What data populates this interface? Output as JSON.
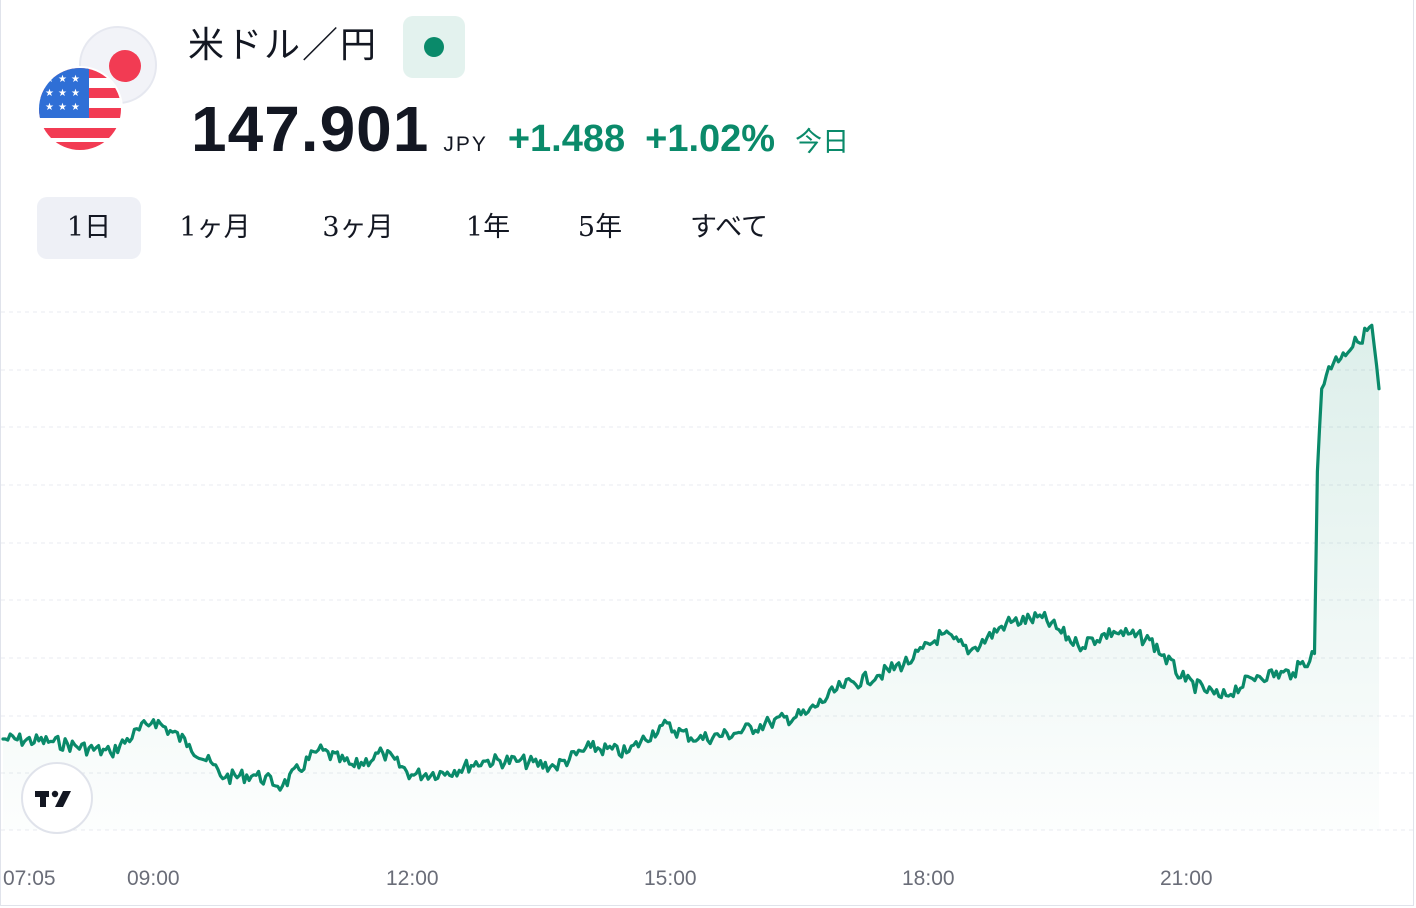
{
  "header": {
    "symbol_name": "米ドル／円",
    "market_status_icon": "market-open-dot",
    "price": "147.901",
    "currency": "JPY",
    "change": "+1.488",
    "change_percent": "+1.02%",
    "period": "今日"
  },
  "tabs": [
    {
      "label": "1日",
      "active": true
    },
    {
      "label": "1ヶ月",
      "active": false
    },
    {
      "label": "3ヶ月",
      "active": false
    },
    {
      "label": "1年",
      "active": false
    },
    {
      "label": "5年",
      "active": false
    },
    {
      "label": "すべて",
      "active": false
    }
  ],
  "icons": {
    "flag_top": "japan-flag-icon",
    "flag_bottom": "us-flag-icon",
    "brand": "tradingview-logo"
  },
  "colors": {
    "accent": "#0a8a6a",
    "jp_red": "#f23b53",
    "us_blue": "#2f6fd6",
    "us_red": "#f23b53",
    "text": "#131722",
    "muted": "#6a6d78"
  },
  "chart_data": {
    "type": "area",
    "x_tick_labels": [
      "07:05",
      "09:00",
      "12:00",
      "15:00",
      "18:00",
      "21:00"
    ],
    "x": [
      "07:05",
      "07:40",
      "08:20",
      "08:50",
      "09:15",
      "09:40",
      "10:00",
      "10:20",
      "10:45",
      "11:10",
      "11:30",
      "11:50",
      "12:15",
      "12:40",
      "13:05",
      "13:30",
      "13:55",
      "14:20",
      "14:45",
      "15:10",
      "15:35",
      "16:00",
      "16:25",
      "16:50",
      "17:15",
      "17:40",
      "18:00",
      "18:20",
      "18:45",
      "19:10",
      "19:35",
      "20:00",
      "20:25",
      "20:50",
      "21:15",
      "21:40",
      "22:05",
      "22:20",
      "22:22",
      "22:25",
      "22:30",
      "22:40",
      "22:50",
      "23:00",
      "23:05"
    ],
    "series": [
      {
        "values": [
          146.63,
          146.62,
          146.58,
          146.7,
          146.61,
          146.49,
          146.5,
          146.46,
          146.59,
          146.53,
          146.58,
          146.5,
          146.51,
          146.55,
          146.55,
          146.53,
          146.6,
          146.58,
          146.68,
          146.63,
          146.65,
          146.69,
          146.72,
          146.82,
          146.86,
          146.92,
          147.01,
          146.95,
          147.05,
          147.07,
          146.97,
          147.02,
          146.99,
          146.84,
          146.78,
          146.86,
          146.87,
          146.94,
          147.6,
          147.9,
          147.98,
          148.03,
          148.07,
          148.13,
          147.9
        ]
      }
    ],
    "ylim": [
      146.3,
      148.2
    ],
    "grid": true,
    "legend": "none"
  }
}
